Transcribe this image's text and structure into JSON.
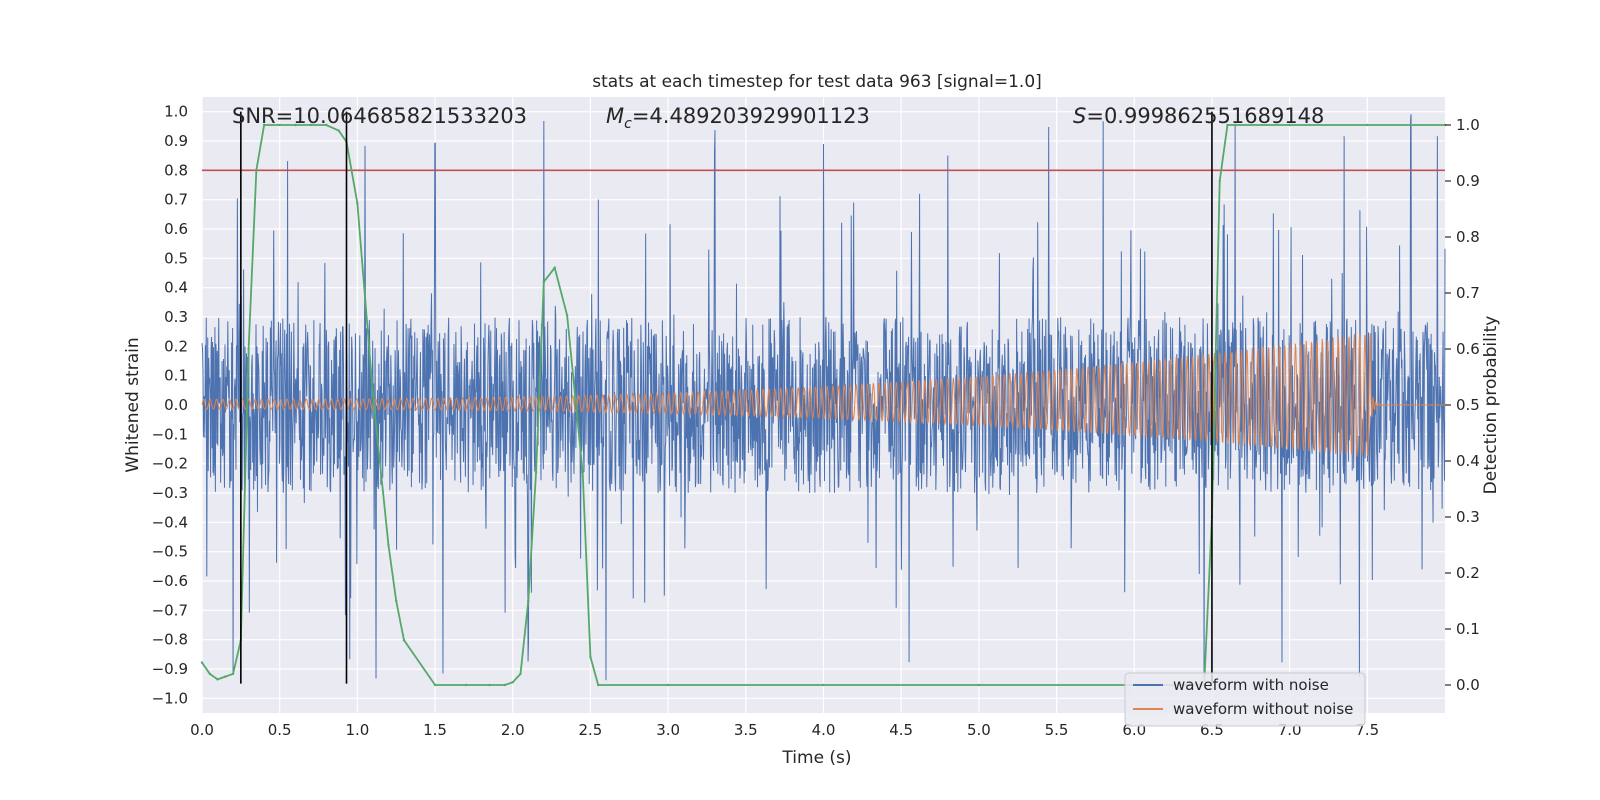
{
  "chart_data": {
    "type": "line",
    "title": "stats at each timestep for test data 963 [signal=1.0]",
    "xlabel": "Time (s)",
    "ylabel": "Whitened strain",
    "y2label": "Detection probability",
    "xlim": [
      0.0,
      8.0
    ],
    "ylim": [
      -1.05,
      1.05
    ],
    "y2lim": [
      -0.05,
      1.05
    ],
    "xticks": [
      0.0,
      0.5,
      1.0,
      1.5,
      2.0,
      2.5,
      3.0,
      3.5,
      4.0,
      4.5,
      5.0,
      5.5,
      6.0,
      6.5,
      7.0,
      7.5
    ],
    "yticks": [
      1.0,
      0.9,
      0.8,
      0.7,
      0.6,
      0.5,
      0.4,
      0.3,
      0.2,
      0.1,
      0.0,
      -0.1,
      -0.2,
      -0.3,
      -0.4,
      -0.5,
      -0.6,
      -0.7,
      -0.8,
      -0.9,
      -1.0
    ],
    "y2ticks": [
      1.0,
      0.9,
      0.8,
      0.7,
      0.6,
      0.5,
      0.4,
      0.3,
      0.2,
      0.1,
      0.0
    ],
    "grid": true,
    "legend_position": "lower-right",
    "annotations": {
      "snr": "SNR=10.064685821533203",
      "mc_symbol": "M",
      "mc_sub": "c",
      "mc_value": "=4.489203929901123",
      "s_symbol": "S",
      "s_value": "=0.999862551689148"
    },
    "threshold_line": {
      "axis": "y",
      "value": 0.8,
      "color": "#c44e52"
    },
    "vertical_markers": [
      0.25,
      0.93,
      6.5
    ],
    "series": [
      {
        "name": "waveform with noise",
        "color": "#4c72b0",
        "kind": "noise",
        "typical_amplitude": 0.3,
        "max_amplitude": 1.0,
        "peak_times": [
          0.55,
          1.05,
          1.5,
          2.2,
          3.3,
          4.0,
          4.8,
          5.45,
          5.8,
          6.65,
          7.35,
          7.78,
          7.95
        ],
        "trough_times": [
          0.2,
          0.95,
          1.12,
          1.55,
          2.1,
          2.6,
          4.55,
          6.45,
          6.95,
          7.45
        ]
      },
      {
        "name": "waveform without noise",
        "color": "#dd8452",
        "kind": "chirp",
        "t_start": 0.0,
        "t_merger": 7.52,
        "amplitude_start": 0.02,
        "amplitude_peak": 0.25,
        "amplitude_trough": -0.18
      },
      {
        "name": "detection probability",
        "color": "#55a868",
        "axis": "right",
        "x": [
          0.0,
          0.05,
          0.1,
          0.15,
          0.2,
          0.25,
          0.3,
          0.35,
          0.4,
          0.5,
          0.6,
          0.7,
          0.8,
          0.88,
          0.93,
          1.0,
          1.1,
          1.2,
          1.25,
          1.3,
          1.5,
          1.7,
          1.85,
          1.95,
          2.0,
          2.05,
          2.1,
          2.15,
          2.2,
          2.27,
          2.35,
          2.45,
          2.5,
          2.55,
          3.0,
          4.0,
          5.0,
          6.0,
          6.3,
          6.45,
          6.5,
          6.55,
          6.6,
          7.0,
          7.5,
          8.0
        ],
        "y": [
          0.04,
          0.02,
          0.01,
          0.015,
          0.02,
          0.08,
          0.6,
          0.92,
          1.0,
          1.0,
          1.0,
          1.0,
          1.0,
          0.99,
          0.97,
          0.86,
          0.52,
          0.25,
          0.15,
          0.08,
          0.0,
          0.0,
          0.0,
          0.0,
          0.005,
          0.02,
          0.15,
          0.38,
          0.72,
          0.745,
          0.66,
          0.38,
          0.05,
          0.0,
          0.0,
          0.0,
          0.0,
          0.0,
          0.0,
          0.0,
          0.3,
          0.9,
          1.0,
          1.0,
          1.0,
          1.0
        ]
      }
    ]
  }
}
